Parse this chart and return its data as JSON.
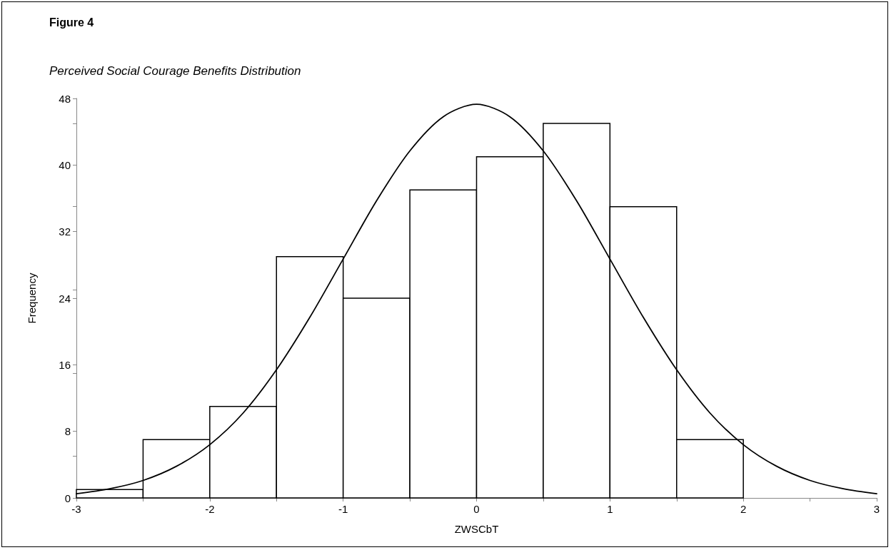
{
  "chart_data": {
    "type": "histogram",
    "title": "Figure 4",
    "subtitle": "Perceived Social Courage Benefits Distribution",
    "xlabel": "ZWSCbT",
    "ylabel": "Frequency",
    "bins": [
      -3,
      -2.5,
      -2,
      -1.5,
      -1,
      -0.5,
      0,
      0.5,
      1,
      1.5,
      2
    ],
    "values": [
      1,
      7,
      11,
      29,
      24,
      37,
      41,
      45,
      35,
      7
    ],
    "color": "#ffffff",
    "series": [
      {
        "type": "line",
        "color": "#000000",
        "marker": "none",
        "x": [
          -3,
          -2.75,
          -2.5,
          -2.25,
          -2,
          -1.75,
          -1.5,
          -1.25,
          -1,
          -0.75,
          -0.5,
          -0.25,
          0,
          0.25,
          0.5,
          0.75,
          1,
          1.25,
          1.5,
          1.75,
          2,
          2.25,
          2.5,
          2.75,
          3
        ],
        "values": [
          0.5,
          1.1,
          2.1,
          3.8,
          6.4,
          10.2,
          15.4,
          21.7,
          28.7,
          35.7,
          41.7,
          45.8,
          47.3,
          45.8,
          41.7,
          35.7,
          28.7,
          21.7,
          15.4,
          10.2,
          6.4,
          3.8,
          2.1,
          1.1,
          0.5
        ]
      }
    ],
    "xlim": [
      -3,
      3
    ],
    "xticks": [
      -3,
      -2,
      -1,
      0,
      1,
      2,
      3
    ],
    "ylim": [
      0,
      48
    ],
    "yticks": [
      0,
      8,
      16,
      24,
      32,
      40,
      48
    ],
    "grid": false
  }
}
